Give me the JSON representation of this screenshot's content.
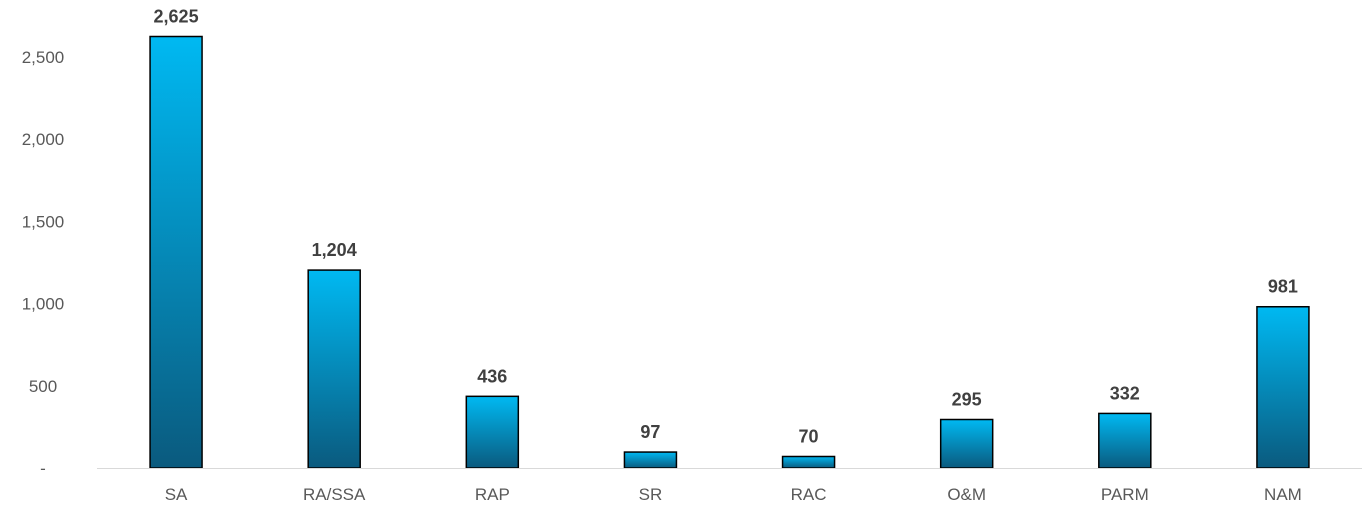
{
  "chart_data": {
    "type": "bar",
    "categories": [
      "SA",
      "RA/SSA",
      "RAP",
      "SR",
      "RAC",
      "O&M",
      "PARM",
      "NAM"
    ],
    "values": [
      2625,
      1204,
      436,
      97,
      70,
      295,
      332,
      981
    ],
    "value_labels": [
      "2,625",
      "1,204",
      "436",
      "97",
      "70",
      "295",
      "332",
      "981"
    ],
    "yticks": [
      0,
      500,
      1000,
      1500,
      2000,
      2500
    ],
    "ytick_labels": [
      "-",
      "500",
      "1,000",
      "1,500",
      "2,000",
      "2,500"
    ],
    "ylim": [
      0,
      2800
    ],
    "title": "",
    "xlabel": "",
    "ylabel": "",
    "grid": false,
    "legend": "none",
    "colors": {
      "bar_top": "#00B9F2",
      "bar_bottom": "#0A5A7E",
      "bar_outline": "#000000",
      "axis": "#D9D9D9"
    }
  }
}
